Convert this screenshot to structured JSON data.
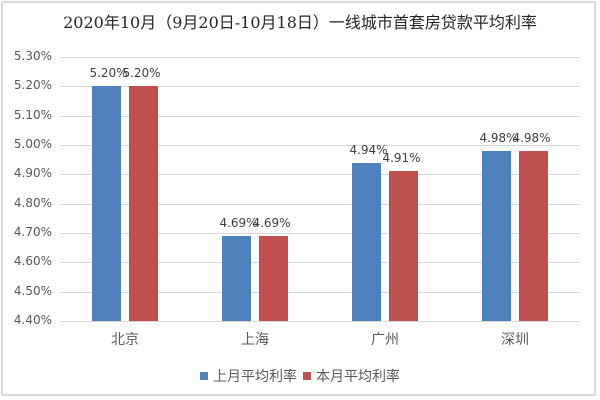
{
  "chart_data": {
    "type": "bar",
    "title": "2020年10月（9月20日-10月18日）一线城市首套房贷款平均利率",
    "categories": [
      "北京",
      "上海",
      "广州",
      "深圳"
    ],
    "series": [
      {
        "name": "上月平均利率",
        "color": "#4f81bd",
        "values": [
          5.2,
          4.69,
          4.94,
          4.98
        ],
        "labels": [
          "5.20%",
          "4.69%",
          "4.94%",
          "4.98%"
        ]
      },
      {
        "name": "本月平均利率",
        "color": "#c0504d",
        "values": [
          5.2,
          4.69,
          4.91,
          4.98
        ],
        "labels": [
          "5.20%",
          "4.69%",
          "4.91%",
          "4.98%"
        ]
      }
    ],
    "xlabel": "",
    "ylabel": "",
    "ylim": [
      4.4,
      5.3
    ],
    "yticks": [
      "5.30%",
      "5.20%",
      "5.10%",
      "5.00%",
      "4.90%",
      "4.80%",
      "4.70%",
      "4.60%",
      "4.50%",
      "4.40%"
    ],
    "grid": true,
    "legend_position": "bottom"
  }
}
